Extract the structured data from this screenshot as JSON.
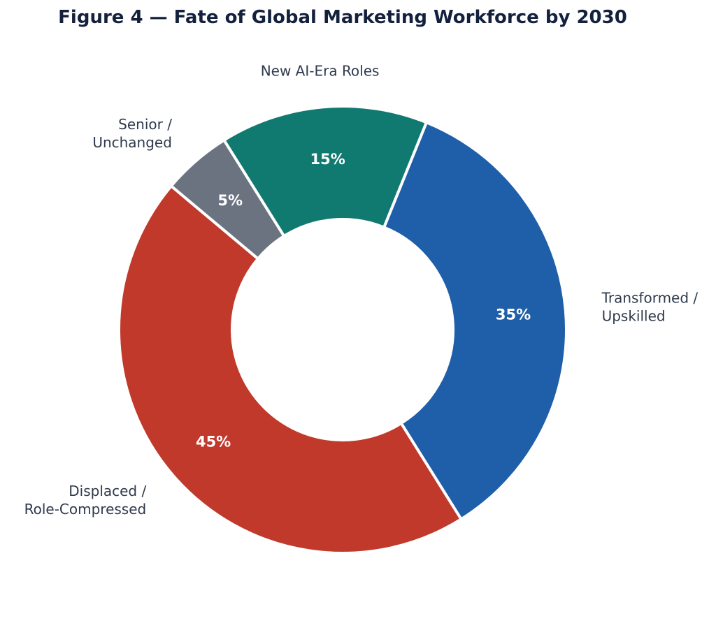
{
  "chart_data": {
    "type": "pie",
    "title": "Figure 4 — Fate of Global Marketing Workforce by 2030",
    "donut": true,
    "slices": [
      {
        "label": "Transformed / Upskilled",
        "lines": [
          "Transformed /",
          "Upskilled"
        ],
        "value": 35,
        "display": "35%",
        "color": "#1f5ea8"
      },
      {
        "label": "Displaced / Role-Compressed",
        "lines": [
          "Displaced /",
          "Role-Compressed"
        ],
        "value": 45,
        "display": "45%",
        "color": "#c0392b"
      },
      {
        "label": "Senior / Unchanged",
        "lines": [
          "Senior /",
          "Unchanged"
        ],
        "value": 5,
        "display": "5%",
        "color": "#6b7280"
      },
      {
        "label": "New AI-Era Roles",
        "lines": [
          "New AI-Era Roles"
        ],
        "value": 15,
        "display": "15%",
        "color": "#117a70"
      }
    ],
    "start_angle_deg": 22,
    "direction": "clockwise",
    "legend": "none"
  }
}
